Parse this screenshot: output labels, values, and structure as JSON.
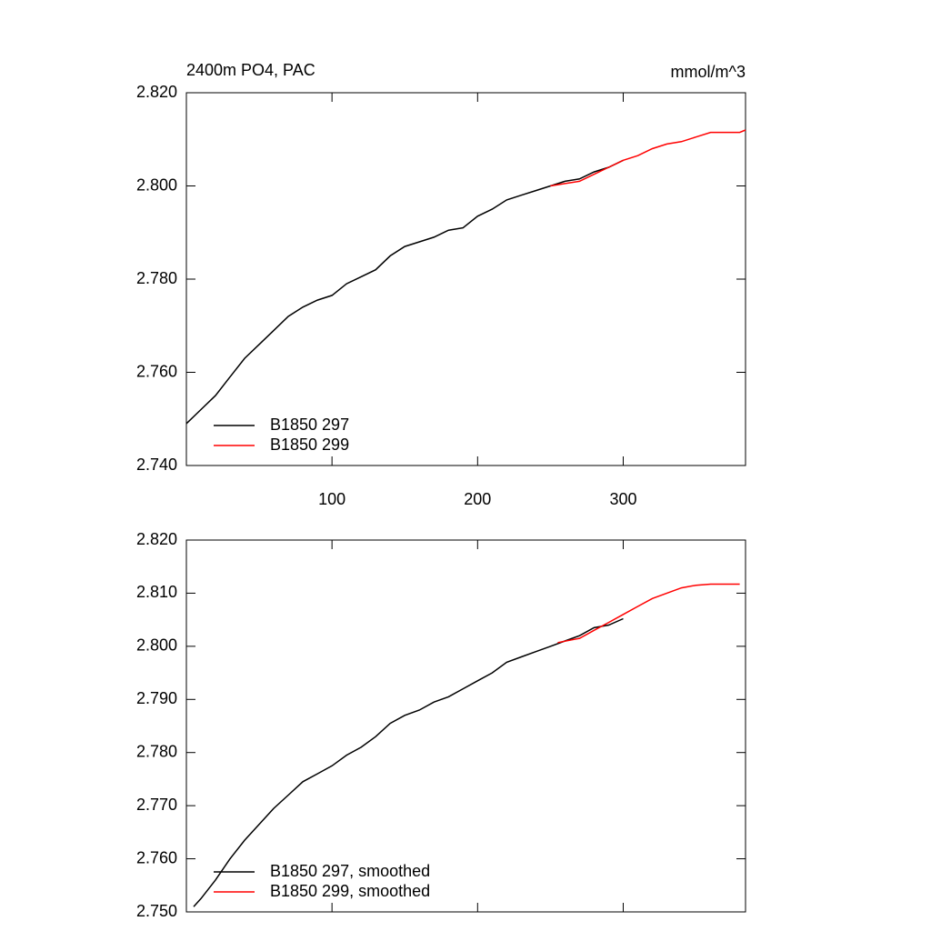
{
  "chart_data": [
    {
      "type": "line",
      "title": "2400m PO4, PAC",
      "units": "mmol/m^3",
      "xlim": [
        0,
        384
      ],
      "xticks": [
        100,
        200,
        300
      ],
      "xticklabels": true,
      "ylim": [
        2.74,
        2.82
      ],
      "yticks": [
        {
          "value": 2.74,
          "label": "2.740"
        },
        {
          "value": 2.76,
          "label": "2.760"
        },
        {
          "value": 2.78,
          "label": "2.780"
        },
        {
          "value": 2.8,
          "label": "2.800"
        },
        {
          "value": 2.82,
          "label": "2.820"
        }
      ],
      "series": [
        {
          "name": "B1850 297",
          "color": "#000000",
          "x": [
            0,
            10,
            20,
            30,
            40,
            50,
            60,
            70,
            80,
            90,
            100,
            110,
            120,
            130,
            140,
            150,
            160,
            170,
            180,
            190,
            200,
            210,
            220,
            230,
            240,
            250,
            260,
            270,
            280,
            290,
            300
          ],
          "values": [
            2.749,
            2.752,
            2.755,
            2.759,
            2.763,
            2.766,
            2.769,
            2.772,
            2.774,
            2.7755,
            2.7765,
            2.779,
            2.7805,
            2.782,
            2.785,
            2.787,
            2.788,
            2.789,
            2.7905,
            2.791,
            2.7935,
            2.795,
            2.797,
            2.798,
            2.799,
            2.8,
            2.801,
            2.8015,
            2.803,
            2.804,
            2.8055
          ]
        },
        {
          "name": "B1850 299",
          "color": "#ff0000",
          "x": [
            250,
            260,
            270,
            280,
            290,
            300,
            310,
            320,
            330,
            340,
            350,
            360,
            370,
            380,
            384
          ],
          "values": [
            2.8,
            2.8005,
            2.801,
            2.8025,
            2.804,
            2.8055,
            2.8065,
            2.808,
            2.809,
            2.8095,
            2.8105,
            2.8115,
            2.8115,
            2.8115,
            2.812
          ]
        }
      ]
    },
    {
      "type": "line",
      "xlim": [
        0,
        384
      ],
      "xticks": [
        100,
        200,
        300
      ],
      "xticklabels": false,
      "ylim": [
        2.75,
        2.82
      ],
      "yticks": [
        {
          "value": 2.75,
          "label": "2.750"
        },
        {
          "value": 2.76,
          "label": "2.760"
        },
        {
          "value": 2.77,
          "label": "2.770"
        },
        {
          "value": 2.78,
          "label": "2.780"
        },
        {
          "value": 2.79,
          "label": "2.790"
        },
        {
          "value": 2.8,
          "label": "2.800"
        },
        {
          "value": 2.81,
          "label": "2.810"
        },
        {
          "value": 2.82,
          "label": "2.820"
        }
      ],
      "series": [
        {
          "name": "B1850 297, smoothed",
          "color": "#000000",
          "x": [
            5,
            10,
            20,
            30,
            40,
            50,
            60,
            70,
            80,
            90,
            100,
            110,
            120,
            130,
            140,
            150,
            160,
            170,
            180,
            190,
            200,
            210,
            220,
            230,
            240,
            250,
            260,
            270,
            280,
            290,
            300
          ],
          "values": [
            2.751,
            2.7525,
            2.756,
            2.76,
            2.7635,
            2.7665,
            2.7695,
            2.772,
            2.7745,
            2.776,
            2.7775,
            2.7795,
            2.781,
            2.783,
            2.7855,
            2.787,
            2.788,
            2.7895,
            2.7905,
            2.792,
            2.7935,
            2.795,
            2.797,
            2.798,
            2.799,
            2.8,
            2.801,
            2.802,
            2.8035,
            2.804,
            2.8052
          ]
        },
        {
          "name": "B1850 299, smoothed",
          "color": "#ff0000",
          "x": [
            255,
            270,
            280,
            290,
            300,
            310,
            320,
            330,
            340,
            350,
            360,
            370,
            380
          ],
          "values": [
            2.8007,
            2.8015,
            2.803,
            2.8045,
            2.806,
            2.8075,
            2.809,
            2.81,
            2.811,
            2.8115,
            2.8117,
            2.8117,
            2.8117
          ]
        }
      ]
    }
  ]
}
